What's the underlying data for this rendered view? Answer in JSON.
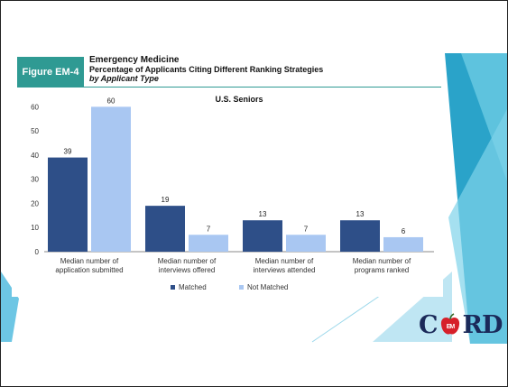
{
  "figure": {
    "tag": "Figure EM-4",
    "title": "Emergency Medicine",
    "subtitle": "Percentage of Applicants Citing Different Ranking Strategies",
    "applicant_type_note": "by Applicant Type"
  },
  "logo": {
    "text_before": "C",
    "apple_text": "EM",
    "text_after": "RD"
  },
  "colors": {
    "matched": "#2e4f88",
    "not_matched": "#a9c7f2",
    "accent": "#2f9a93",
    "deco_blue": "#2aa3c9"
  },
  "chart_data": {
    "type": "bar",
    "title": "U.S. Seniors",
    "categories": [
      [
        "Median number of",
        "application submitted"
      ],
      [
        "Median number of",
        "interviews offered"
      ],
      [
        "Median number of",
        "interviews attended"
      ],
      [
        "Median number of",
        "programs ranked"
      ]
    ],
    "series": [
      {
        "name": "Matched",
        "values": [
          39,
          19,
          13,
          13
        ]
      },
      {
        "name": "Not Matched",
        "values": [
          60,
          7,
          7,
          6
        ]
      }
    ],
    "yticks": [
      0,
      10,
      20,
      30,
      40,
      50,
      60
    ],
    "ylim": [
      0,
      65
    ],
    "grid": false,
    "legend_position": "bottom"
  }
}
